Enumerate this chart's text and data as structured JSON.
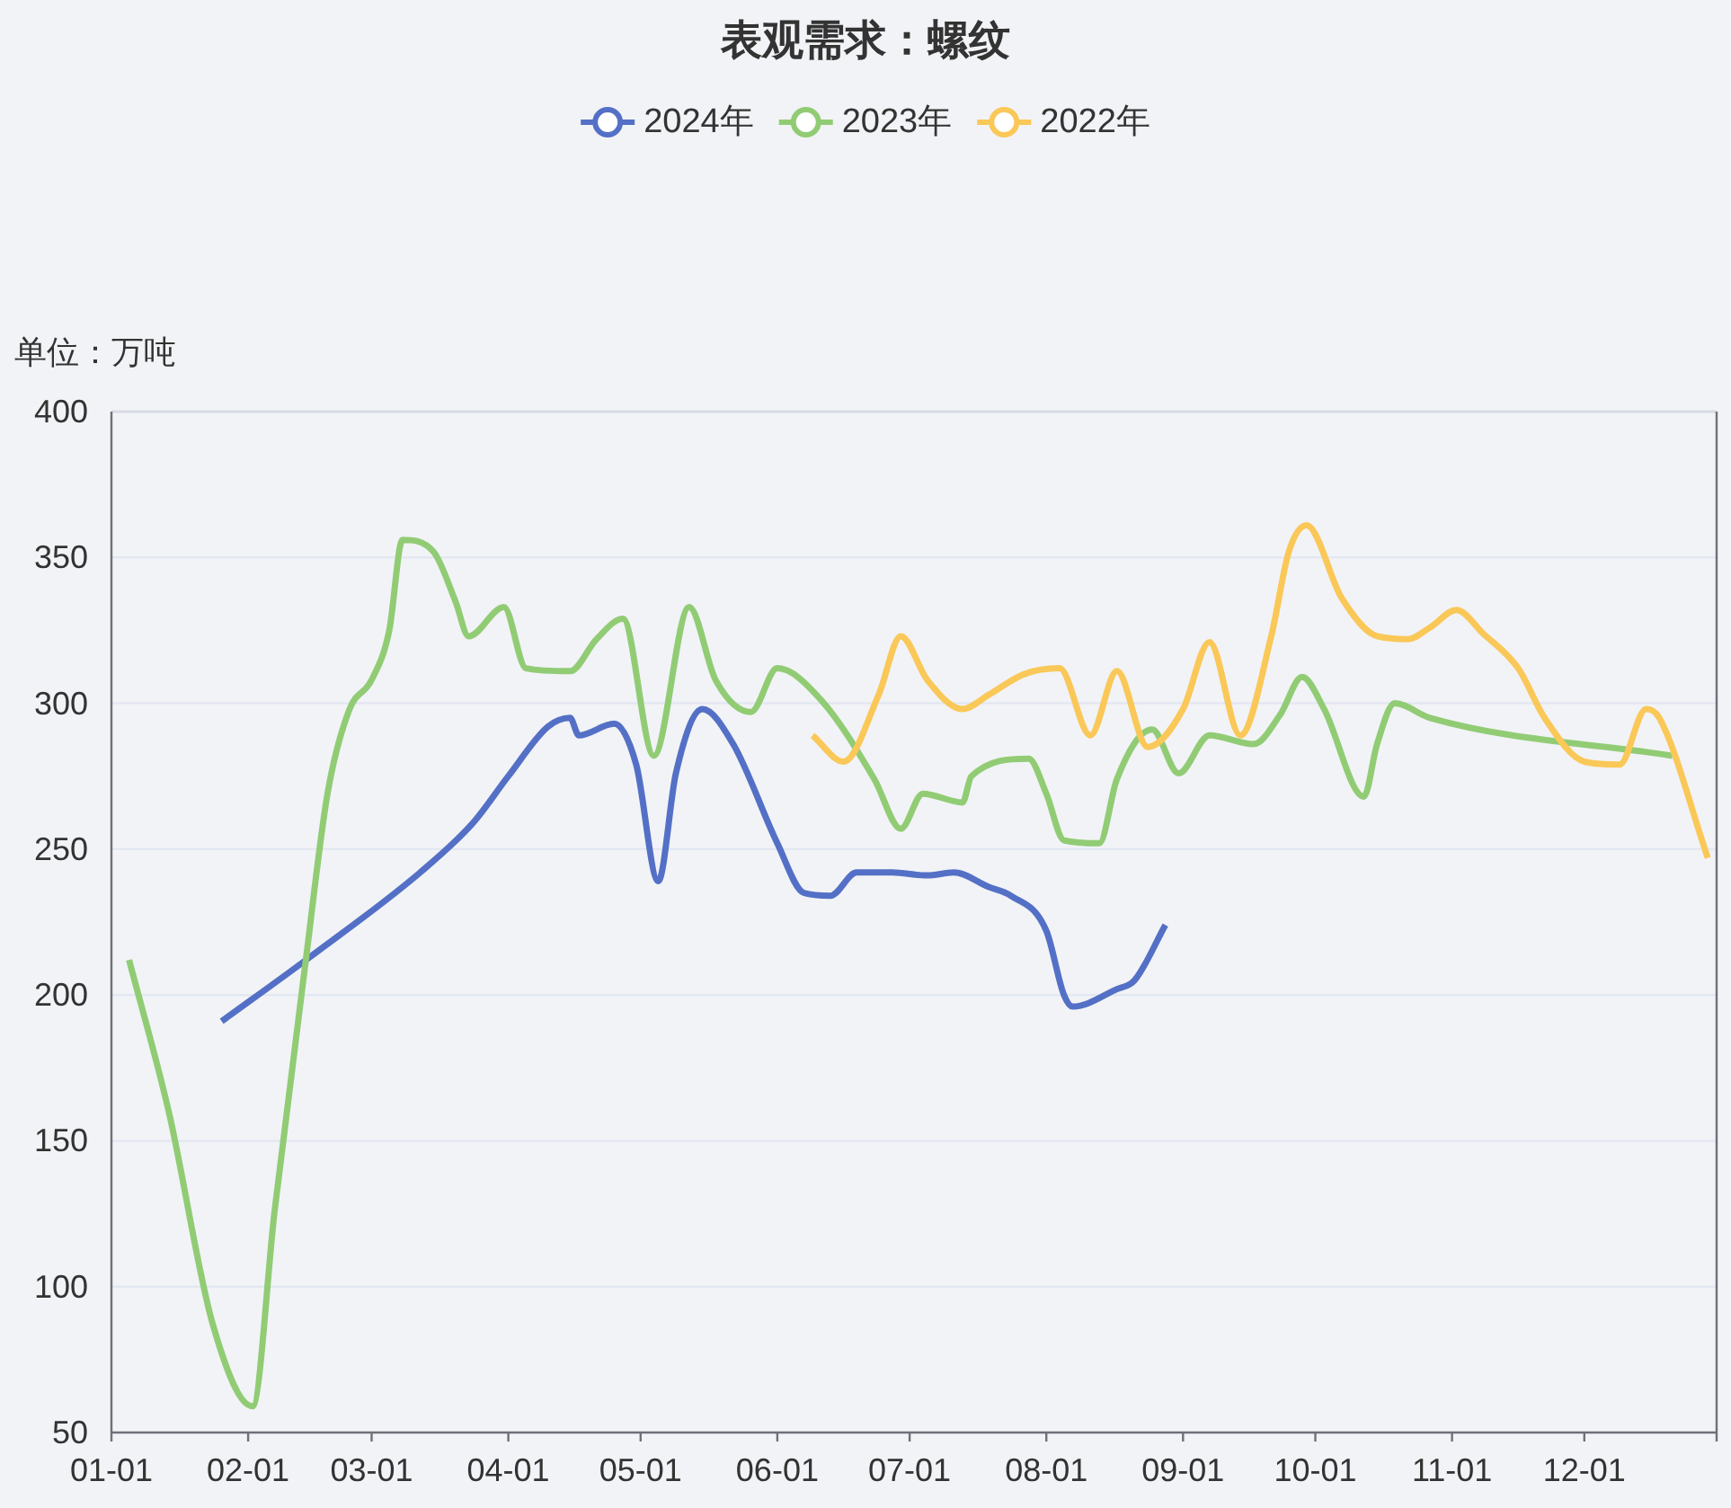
{
  "chart_data": {
    "type": "line",
    "title": "表观需求：螺纹",
    "ylabel": "单位：万吨",
    "legend": "top",
    "grid": "y",
    "xlim": [
      "--01-01",
      "--12-31"
    ],
    "xticks": [
      {
        "value": "--01-01",
        "label": "01-01"
      },
      {
        "value": "--02-01",
        "label": "02-01"
      },
      {
        "value": "--03-01",
        "label": "03-01"
      },
      {
        "value": "--04-01",
        "label": "04-01"
      },
      {
        "value": "--05-01",
        "label": "05-01"
      },
      {
        "value": "--06-01",
        "label": "06-01"
      },
      {
        "value": "--07-01",
        "label": "07-01"
      },
      {
        "value": "--08-01",
        "label": "08-01"
      },
      {
        "value": "--09-01",
        "label": "09-01"
      },
      {
        "value": "--10-01",
        "label": "10-01"
      },
      {
        "value": "--11-01",
        "label": "11-01"
      },
      {
        "value": "--12-01",
        "label": "12-01"
      }
    ],
    "ylim": [
      50,
      400
    ],
    "yticks": [
      50,
      100,
      150,
      200,
      250,
      300,
      350,
      400
    ],
    "series": [
      {
        "name": "2024年",
        "color": "#5470c6",
        "x": [
          "--01-26",
          "--02-15",
          "--03-12",
          "--03-24",
          "--04-01",
          "--04-10",
          "--04-15",
          "--04-17",
          "--04-25",
          "--04-30",
          "--05-05",
          "--05-09",
          "--05-15",
          "--05-22",
          "--06-01",
          "--06-07",
          "--06-13",
          "--06-19",
          "--06-27",
          "--07-05",
          "--07-11",
          "--07-19",
          "--07-24",
          "--08-01",
          "--08-05",
          "--08-07",
          "--08-17",
          "--08-21",
          "--08-28"
        ],
        "values": [
          191,
          213,
          242,
          259,
          275,
          292,
          295,
          289,
          293,
          279,
          239,
          276,
          298,
          286,
          252,
          235,
          234,
          242,
          242,
          241,
          242,
          237,
          234,
          222,
          200,
          196,
          202,
          205,
          224
        ]
      },
      {
        "name": "2023年",
        "color": "#91cc75",
        "x": [
          "--01-05",
          "--01-14",
          "--01-24",
          "--02-02",
          "--02-07",
          "--02-14",
          "--02-19",
          "--02-24",
          "--03-01",
          "--03-05",
          "--03-08",
          "--03-15",
          "--03-20",
          "--03-23",
          "--03-31",
          "--04-05",
          "--04-15",
          "--04-21",
          "--04-27",
          "--05-04",
          "--05-12",
          "--05-18",
          "--05-26",
          "--06-01",
          "--06-11",
          "--06-23",
          "--06-29",
          "--07-04",
          "--07-13",
          "--07-15",
          "--07-28",
          "--08-01",
          "--08-05",
          "--08-13",
          "--08-17",
          "--08-25",
          "--08-31",
          "--09-07",
          "--09-17",
          "--09-23",
          "--09-28",
          "--10-03",
          "--10-12",
          "--10-15",
          "--10-19",
          "--10-27",
          "--12-21"
        ],
        "values": [
          212,
          160,
          87,
          59,
          126,
          211,
          269,
          298,
          308,
          325,
          356,
          352,
          335,
          323,
          333,
          312,
          311,
          322,
          329,
          282,
          333,
          308,
          297,
          312,
          301,
          274,
          257,
          269,
          266,
          275,
          281,
          269,
          253,
          252,
          274,
          291,
          276,
          289,
          286,
          296,
          309,
          298,
          268,
          286,
          300,
          295,
          282
        ]
      },
      {
        "name": "2022年",
        "color": "#fac858",
        "x": [
          "--06-09",
          "--06-16",
          "--06-24",
          "--06-29",
          "--07-05",
          "--07-13",
          "--07-19",
          "--07-27",
          "--08-04",
          "--08-11",
          "--08-17",
          "--08-24",
          "--09-01",
          "--09-07",
          "--09-14",
          "--09-21",
          "--09-25",
          "--09-29",
          "--10-07",
          "--10-15",
          "--10-22",
          "--10-27",
          "--11-02",
          "--11-08",
          "--11-16",
          "--11-22",
          "--12-01",
          "--12-09",
          "--12-15",
          "--12-18",
          "--12-29"
        ],
        "values": [
          289,
          280,
          303,
          323,
          308,
          298,
          303,
          310,
          312,
          289,
          311,
          285,
          298,
          321,
          289,
          323,
          352,
          361,
          336,
          323,
          322,
          326,
          332,
          324,
          312,
          295,
          280,
          279,
          298,
          295,
          247
        ]
      }
    ]
  }
}
